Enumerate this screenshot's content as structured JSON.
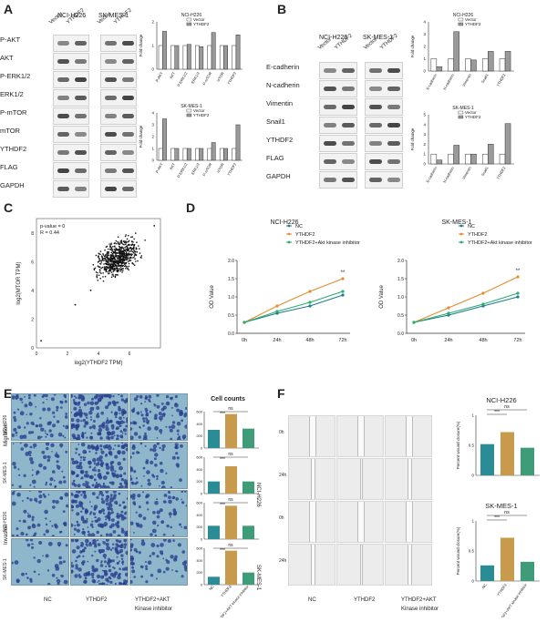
{
  "panels": {
    "A": {
      "letter": "A",
      "groups": [
        "NCI-H226",
        "SK-MES-1"
      ],
      "lanes": [
        "Vector",
        "YTHDF2"
      ],
      "rows": [
        "P-AKT",
        "AKT",
        "P-ERK1/2",
        "ERK1/2",
        "P-mTOR",
        "mTOR",
        "YTHDF2",
        "FLAG",
        "GAPDH"
      ],
      "chart_titles": [
        "NCI-H226",
        "SK-MES-1"
      ],
      "ylabel": "Fold change",
      "legend": [
        "Vector",
        "YTHDF2"
      ],
      "xticks": [
        "P-AKT",
        "AKT",
        "P-ERK1/2",
        "ERK1/2",
        "P-mTOR",
        "mTOR",
        "YTHDF2"
      ]
    },
    "B": {
      "letter": "B",
      "groups": [
        "NCI-H226",
        "SK-MES-1"
      ],
      "lanes": [
        "Vector",
        "YTHDF2"
      ],
      "rows": [
        "E-cadherin",
        "N-cadherin",
        "Vimentin",
        "Snail1",
        "YTHDF2",
        "FLAG",
        "GAPDH"
      ],
      "chart_titles": [
        "NCI-H226",
        "SK-MES-1"
      ],
      "ylabel": "Fold change",
      "legend": [
        "Vector",
        "YTHDF2"
      ],
      "xticks": [
        "E-cadherin",
        "N-cadherin",
        "Vimentin",
        "Snail1",
        "YTHDF2"
      ]
    },
    "C": {
      "letter": "C",
      "pvalue": "p-value = 0",
      "r": "R = 0.44",
      "xlabel": "log2(YTHDF2 TPM)",
      "ylabel": "log2(MTOR TPM)",
      "xticks": [
        "0",
        "2",
        "4",
        "6"
      ],
      "yticks": [
        "0",
        "2",
        "4",
        "6",
        "8"
      ]
    },
    "D": {
      "letter": "D",
      "titles": [
        "NCI-H226",
        "SK-MES-1"
      ],
      "legend_left": [
        "NC",
        "YTHDF2",
        "YTHDF2+Akt kinase inhibitor"
      ],
      "legend_right": [
        "NC",
        "YTHDF2",
        "YTHDF2+Akt kinase inhibitor"
      ],
      "ylabel": "OD Value",
      "yticks": [
        "0.0",
        "0.5",
        "1.0",
        "1.5",
        "2.0"
      ],
      "xticks": [
        "0h",
        "24h",
        "48h",
        "72h"
      ],
      "sig": "**"
    },
    "E": {
      "letter": "E",
      "row_groups": [
        "Migration",
        "Invasion"
      ],
      "row_labels": [
        "NCI-H226",
        "SK-MES-1",
        "NCI-H226",
        "SK-MES-1"
      ],
      "columns": [
        "NC",
        "YTHDF2",
        "YTHDF2+AKT"
      ],
      "column_sub": "Kinase inhibitor",
      "chart_title": "Cell counts",
      "sig": [
        "ns",
        "***",
        "ns",
        "***",
        "ns",
        "***",
        "ns",
        "***"
      ],
      "xticks": [
        "NC",
        "YTHDF2",
        "YTHDF2+AKT kinase inhibitor"
      ]
    },
    "F": {
      "letter": "F",
      "row_groups": [
        "NCI-H226",
        "SK-MES-1"
      ],
      "time_labels": [
        "0h",
        "24h",
        "0h",
        "24h"
      ],
      "columns": [
        "NC",
        "YTHDF2",
        "YTHDF2+AKT"
      ],
      "column_sub": "Kinase inhibitor",
      "chart_titles": [
        "NCI-H226",
        "SK-MES-1"
      ],
      "ylabel": "Percent wound closure(%)",
      "sig": [
        "***",
        "ns",
        "***",
        "ns"
      ],
      "xticks": [
        "NC",
        "YTHDF2",
        "YTHDF2+AKT kinase inhibitor"
      ]
    }
  },
  "chart_data": [
    {
      "id": "A-NCI-H226",
      "type": "bar",
      "title": "NCI-H226",
      "ylabel": "Fold change",
      "categories": [
        "P-AKT",
        "AKT",
        "P-ERK1/2",
        "ERK1/2",
        "P-mTOR",
        "mTOR",
        "YTHDF2"
      ],
      "series": [
        {
          "name": "Vector",
          "values": [
            1,
            1,
            1,
            1,
            1,
            1,
            1
          ]
        },
        {
          "name": "YTHDF2",
          "values": [
            1.6,
            1.0,
            1.05,
            0.95,
            1.55,
            1.0,
            1.45
          ]
        }
      ],
      "ylim": [
        0,
        2
      ]
    },
    {
      "id": "A-SK-MES-1",
      "type": "bar",
      "title": "SK-MES-1",
      "ylabel": "Fold change",
      "categories": [
        "P-AKT",
        "AKT",
        "P-ERK1/2",
        "ERK1/2",
        "P-mTOR",
        "mTOR",
        "YTHDF2"
      ],
      "series": [
        {
          "name": "Vector",
          "values": [
            1,
            1,
            1,
            1,
            1,
            1,
            1
          ]
        },
        {
          "name": "YTHDF2",
          "values": [
            3.5,
            1.0,
            1.0,
            1.0,
            1.5,
            1.0,
            3.0
          ]
        }
      ],
      "ylim": [
        0,
        4
      ]
    },
    {
      "id": "B-NCI-H226",
      "type": "bar",
      "title": "NCI-H226",
      "ylabel": "Fold change",
      "categories": [
        "E-cadherin",
        "N-cadherin",
        "Vimentin",
        "Snail1",
        "YTHDF2"
      ],
      "series": [
        {
          "name": "Vector",
          "values": [
            1,
            1,
            1,
            1,
            1
          ]
        },
        {
          "name": "YTHDF2",
          "values": [
            0.35,
            3.2,
            0.9,
            1.6,
            1.6
          ]
        }
      ],
      "ylim": [
        0,
        4
      ]
    },
    {
      "id": "B-SK-MES-1",
      "type": "bar",
      "title": "SK-MES-1",
      "ylabel": "Fold change",
      "categories": [
        "E-cadherin",
        "N-cadherin",
        "Vimentin",
        "Snail1",
        "YTHDF2"
      ],
      "series": [
        {
          "name": "Vector",
          "values": [
            1,
            1,
            1,
            1,
            1
          ]
        },
        {
          "name": "YTHDF2",
          "values": [
            0.4,
            1.9,
            1.0,
            2.0,
            4.1
          ]
        }
      ],
      "ylim": [
        0,
        5
      ]
    },
    {
      "id": "D-NCI-H226",
      "type": "line",
      "title": "NCI-H226",
      "ylabel": "OD Value",
      "x": [
        "0h",
        "24h",
        "48h",
        "72h"
      ],
      "series": [
        {
          "name": "NC",
          "values": [
            0.3,
            0.55,
            0.75,
            1.05
          ]
        },
        {
          "name": "YTHDF2",
          "values": [
            0.3,
            0.75,
            1.15,
            1.5
          ]
        },
        {
          "name": "YTHDF2+Akt kinase inhibitor",
          "values": [
            0.3,
            0.6,
            0.85,
            1.15
          ]
        }
      ],
      "ylim": [
        0,
        2
      ]
    },
    {
      "id": "D-SK-MES-1",
      "type": "line",
      "title": "SK-MES-1",
      "ylabel": "OD Value",
      "x": [
        "0h",
        "24h",
        "48h",
        "72h"
      ],
      "series": [
        {
          "name": "NC",
          "values": [
            0.3,
            0.5,
            0.75,
            1.0
          ]
        },
        {
          "name": "YTHDF2",
          "values": [
            0.3,
            0.7,
            1.1,
            1.55
          ]
        },
        {
          "name": "YTHDF2+Akt kinase inhibitor",
          "values": [
            0.3,
            0.55,
            0.8,
            1.1
          ]
        }
      ],
      "ylim": [
        0,
        2
      ]
    },
    {
      "id": "E-cell-counts",
      "type": "bar",
      "title": "Cell counts",
      "categories": [
        "NC",
        "YTHDF2",
        "YTHDF2+AKT kinase inhibitor"
      ],
      "series": [
        {
          "values": [
            300,
            560,
            320
          ]
        },
        {
          "values": [
            200,
            450,
            200
          ]
        },
        {
          "values": [
            220,
            550,
            220
          ]
        },
        {
          "values": [
            130,
            560,
            200
          ]
        }
      ]
    },
    {
      "id": "F-NCI-H226",
      "type": "bar",
      "title": "NCI-H226",
      "ylabel": "Percent wound closure(%)",
      "categories": [
        "NC",
        "YTHDF2",
        "YTHDF2+AKT kinase inhibitor"
      ],
      "values": [
        0.52,
        0.72,
        0.46
      ],
      "ylim": [
        0,
        1
      ]
    },
    {
      "id": "F-SK-MES-1",
      "type": "bar",
      "title": "SK-MES-1",
      "ylabel": "Percent wound closure(%)",
      "categories": [
        "NC",
        "YTHDF2",
        "YTHDF2+AKT kinase inhibitor"
      ],
      "values": [
        0.26,
        0.72,
        0.32
      ],
      "ylim": [
        0,
        1
      ]
    }
  ],
  "colors": {
    "bar_vector": "#ffffff",
    "bar_ythdf2": "#9a9a9a",
    "nc": "#1f7a8c",
    "ythdf2": "#e08e2e",
    "inhibitor": "#2bab6e",
    "teal_bar": "#2a8c94",
    "gold_bar": "#c89a4c",
    "green_bar": "#3e9d78",
    "micro_bg": "#8fb7cc",
    "cell_dot": "#2a3f8f"
  }
}
